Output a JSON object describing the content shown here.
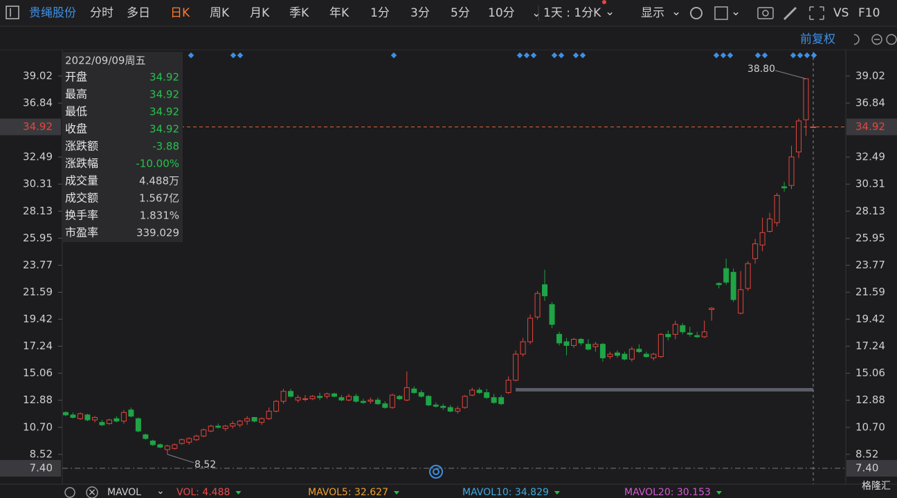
{
  "toolbar": {
    "stock_name": "贵绳股份",
    "tabs": [
      "分时",
      "多日",
      "日K",
      "周K",
      "月K",
      "季K",
      "年K",
      "1分",
      "3分",
      "5分",
      "10分"
    ],
    "active_tab": 2,
    "period": "1天 : 1分K",
    "display": "显示",
    "vs": "VS",
    "f10": "F10"
  },
  "adjust": "前复权",
  "info_panel": {
    "date": "2022/09/09周五",
    "rows": [
      {
        "label": "开盘",
        "value": "34.92"
      },
      {
        "label": "最高",
        "value": "34.92"
      },
      {
        "label": "最低",
        "value": "34.92"
      },
      {
        "label": "收盘",
        "value": "34.92"
      },
      {
        "label": "涨跌额",
        "value": "-3.88"
      },
      {
        "label": "涨跌幅",
        "value": "-10.00%"
      },
      {
        "label": "成交量",
        "value": "4.488万"
      },
      {
        "label": "成交额",
        "value": "1.567亿"
      },
      {
        "label": "换手率",
        "value": "1.831%"
      },
      {
        "label": "市盈率",
        "value": "339.029"
      }
    ]
  },
  "chart_data": {
    "type": "candlestick",
    "candle_fields": [
      "open",
      "high",
      "low",
      "close"
    ],
    "up_color": "#e8453c",
    "down_color": "#1fa446",
    "ylim": [
      7.4,
      40.97
    ],
    "yticks": [
      {
        "value": 7.4,
        "label": "7.40"
      },
      8.52,
      {
        "value": 10.7,
        "label": "10.70"
      },
      12.88,
      15.06,
      17.24,
      19.42,
      21.59,
      23.77,
      25.95,
      28.13,
      30.31,
      32.49,
      36.84,
      39.02
    ],
    "last_price": 34.92,
    "high_marker": {
      "value": 38.8,
      "label": "38.80"
    },
    "low_marker": 8.52,
    "candles": [
      [
        11.9,
        12.0,
        11.6,
        11.7
      ],
      [
        11.7,
        11.9,
        11.4,
        11.5
      ],
      [
        11.4,
        11.9,
        11.3,
        11.8
      ],
      [
        11.7,
        11.8,
        11.2,
        11.3
      ],
      [
        11.3,
        11.6,
        11.1,
        11.5
      ],
      [
        11.1,
        11.3,
        10.8,
        10.9
      ],
      [
        11.0,
        11.4,
        10.9,
        11.3
      ],
      [
        11.4,
        11.6,
        11.1,
        11.2
      ],
      [
        11.2,
        12.1,
        11.0,
        11.9
      ],
      [
        12.1,
        12.3,
        11.5,
        11.6
      ],
      [
        11.4,
        11.5,
        10.3,
        10.4
      ],
      [
        10.1,
        10.2,
        9.7,
        9.8
      ],
      [
        9.6,
        9.7,
        9.2,
        9.3
      ],
      [
        9.3,
        9.4,
        9.0,
        9.1
      ],
      [
        8.9,
        9.3,
        8.52,
        9.2
      ],
      [
        9.0,
        9.4,
        8.9,
        9.3
      ],
      [
        9.4,
        9.8,
        9.3,
        9.7
      ],
      [
        9.5,
        9.9,
        9.3,
        9.8
      ],
      [
        9.7,
        10.1,
        9.6,
        10.0
      ],
      [
        10.0,
        10.6,
        9.9,
        10.5
      ],
      [
        10.4,
        10.9,
        10.3,
        10.8
      ],
      [
        10.8,
        11.0,
        10.6,
        10.7
      ],
      [
        10.6,
        10.9,
        10.4,
        10.8
      ],
      [
        10.8,
        11.2,
        10.6,
        11.0
      ],
      [
        10.9,
        11.3,
        10.7,
        11.2
      ],
      [
        11.2,
        11.6,
        10.9,
        11.4
      ],
      [
        11.5,
        11.5,
        11.1,
        11.2
      ],
      [
        11.1,
        11.5,
        10.9,
        11.4
      ],
      [
        11.4,
        12.3,
        11.3,
        12.0
      ],
      [
        12.0,
        12.9,
        11.9,
        12.8
      ],
      [
        12.8,
        13.8,
        12.6,
        13.6
      ],
      [
        13.6,
        13.8,
        13.1,
        13.2
      ],
      [
        12.9,
        13.3,
        12.7,
        13.1
      ],
      [
        13.0,
        13.3,
        12.8,
        13.0
      ],
      [
        13.0,
        13.3,
        12.9,
        13.2
      ],
      [
        13.2,
        13.5,
        12.9,
        13.1
      ],
      [
        13.2,
        13.5,
        13.0,
        13.4
      ],
      [
        13.4,
        13.5,
        13.1,
        13.2
      ],
      [
        13.1,
        13.3,
        12.8,
        12.9
      ],
      [
        12.9,
        13.4,
        12.8,
        13.2
      ],
      [
        13.2,
        13.4,
        12.7,
        12.8
      ],
      [
        12.8,
        13.0,
        12.6,
        12.7
      ],
      [
        12.8,
        13.1,
        12.6,
        12.9
      ],
      [
        12.9,
        13.1,
        12.5,
        12.6
      ],
      [
        12.6,
        12.8,
        12.2,
        12.3
      ],
      [
        12.3,
        13.4,
        12.2,
        13.3
      ],
      [
        13.2,
        13.3,
        12.9,
        13.0
      ],
      [
        12.9,
        15.2,
        12.8,
        13.9
      ],
      [
        13.8,
        14.0,
        13.4,
        13.5
      ],
      [
        13.5,
        13.7,
        13.1,
        13.2
      ],
      [
        13.2,
        13.3,
        12.4,
        12.5
      ],
      [
        12.5,
        12.7,
        12.3,
        12.4
      ],
      [
        12.4,
        12.6,
        12.1,
        12.3
      ],
      [
        12.3,
        12.5,
        11.9,
        12.0
      ],
      [
        12.0,
        12.4,
        11.8,
        12.2
      ],
      [
        12.3,
        13.3,
        12.2,
        13.2
      ],
      [
        13.3,
        13.9,
        13.2,
        13.7
      ],
      [
        13.7,
        13.9,
        13.4,
        13.5
      ],
      [
        13.5,
        13.8,
        13.0,
        13.1
      ],
      [
        13.1,
        13.4,
        12.6,
        12.7
      ],
      [
        13.1,
        13.3,
        12.5,
        12.6
      ],
      [
        13.5,
        14.8,
        13.4,
        14.5
      ],
      [
        14.5,
        16.9,
        14.4,
        16.6
      ],
      [
        16.6,
        17.9,
        16.4,
        17.6
      ],
      [
        17.6,
        19.8,
        17.4,
        19.5
      ],
      [
        19.6,
        21.7,
        19.4,
        21.5
      ],
      [
        22.2,
        23.4,
        20.9,
        21.3
      ],
      [
        20.6,
        20.8,
        18.7,
        19.0
      ],
      [
        18.2,
        18.4,
        17.3,
        17.5
      ],
      [
        17.6,
        17.9,
        16.5,
        17.3
      ],
      [
        17.3,
        17.9,
        17.1,
        17.8
      ],
      [
        17.8,
        17.9,
        17.3,
        17.5
      ],
      [
        17.4,
        17.8,
        16.9,
        17.0
      ],
      [
        17.2,
        17.6,
        16.8,
        17.4
      ],
      [
        17.4,
        17.5,
        16.0,
        16.3
      ],
      [
        16.4,
        16.8,
        16.2,
        16.6
      ],
      [
        16.7,
        16.9,
        16.3,
        16.5
      ],
      [
        16.6,
        16.8,
        16.1,
        16.2
      ],
      [
        16.2,
        17.2,
        16.0,
        17.0
      ],
      [
        17.0,
        17.4,
        16.7,
        16.8
      ],
      [
        16.6,
        16.8,
        16.3,
        16.4
      ],
      [
        16.3,
        16.7,
        16.1,
        16.6
      ],
      [
        16.4,
        18.3,
        16.3,
        18.2
      ],
      [
        18.2,
        18.5,
        17.7,
        18.0
      ],
      [
        18.2,
        19.3,
        17.8,
        19.0
      ],
      [
        18.9,
        19.1,
        18.2,
        18.4
      ],
      [
        18.3,
        18.8,
        18.0,
        18.2
      ],
      [
        18.1,
        18.4,
        17.9,
        18.0
      ],
      [
        18.0,
        19.3,
        17.9,
        18.4
      ],
      [
        20.2,
        20.4,
        19.3,
        20.3
      ],
      [
        22.3,
        22.4,
        21.9,
        22.2
      ],
      [
        23.5,
        24.3,
        22.2,
        22.4
      ],
      [
        23.2,
        23.5,
        20.8,
        21.0
      ],
      [
        19.9,
        23.3,
        19.8,
        21.8
      ],
      [
        21.9,
        24.1,
        21.7,
        23.9
      ],
      [
        24.3,
        25.9,
        23.9,
        25.5
      ],
      [
        25.4,
        27.6,
        24.9,
        26.4
      ],
      [
        26.5,
        28.0,
        26.4,
        27.5
      ],
      [
        27.2,
        29.6,
        26.9,
        29.4
      ],
      [
        30.1,
        30.5,
        29.7,
        30.0
      ],
      [
        30.2,
        33.4,
        29.9,
        32.5
      ],
      [
        32.9,
        35.6,
        32.4,
        35.4
      ],
      [
        35.5,
        38.8,
        34.2,
        38.8
      ],
      [
        34.92,
        34.92,
        34.92,
        34.92
      ]
    ]
  },
  "indicator_bar": {
    "name": "MAVOL",
    "items": [
      {
        "text": "VOL: 4.488",
        "color": "#e94c4c"
      },
      {
        "text": "MAVOL5: 32.627",
        "color": "#f0a030"
      },
      {
        "text": "MAVOL10: 34.829",
        "color": "#3fa9e0"
      },
      {
        "text": "MAVOL20: 30.153",
        "color": "#d35ad3"
      }
    ]
  },
  "watermark": "格隆汇"
}
